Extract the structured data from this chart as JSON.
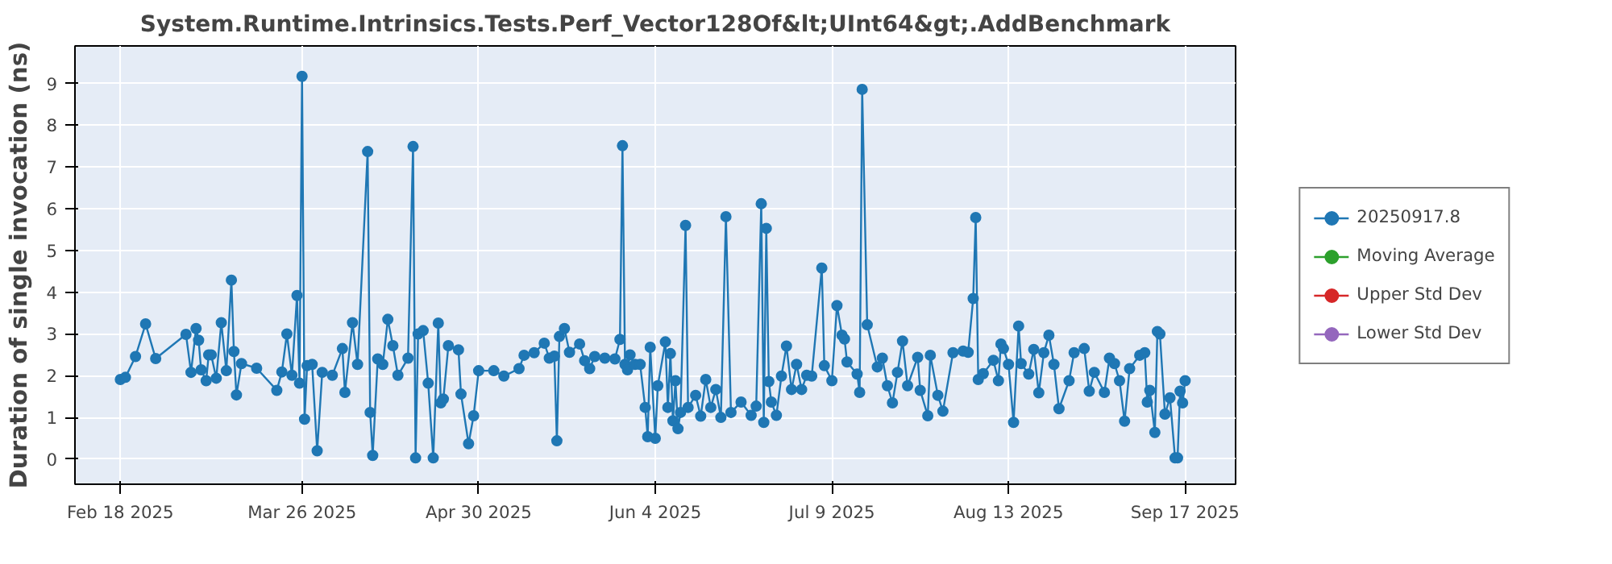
{
  "chart_data": {
    "type": "line",
    "title": "System.Runtime.Intrinsics.Tests.Perf_Vector128Of&lt;UInt64&gt;.AddBenchmark",
    "ylabel": "Duration of single invocation (ns)",
    "xlim": [
      "2025-02-09",
      "2025-09-27"
    ],
    "ylim": [
      -0.6,
      9.9
    ],
    "xticks": [
      {
        "value": "2025-02-18",
        "label": "Feb 18 2025"
      },
      {
        "value": "2025-03-26",
        "label": "Mar 26 2025"
      },
      {
        "value": "2025-04-30",
        "label": "Apr 30 2025"
      },
      {
        "value": "2025-06-04",
        "label": "Jun 4 2025"
      },
      {
        "value": "2025-07-09",
        "label": "Jul 9 2025"
      },
      {
        "value": "2025-08-13",
        "label": "Aug 13 2025"
      },
      {
        "value": "2025-09-17",
        "label": "Sep 17 2025"
      }
    ],
    "yticks": [
      0,
      1,
      2,
      3,
      4,
      5,
      6,
      7,
      8,
      9
    ],
    "grid": true,
    "legend": "right",
    "marker": "circle",
    "line_style": "solid",
    "series": [
      {
        "name": "20250917.8",
        "color": "#1f77b4",
        "x": [
          "2025-02-18",
          "2025-02-19",
          "2025-02-21",
          "2025-02-23",
          "2025-02-25",
          "2025-03-03",
          "2025-03-04",
          "2025-03-05",
          "2025-03-05T12:00",
          "2025-03-06",
          "2025-03-07",
          "2025-03-07T12:00",
          "2025-03-08",
          "2025-03-09",
          "2025-03-10",
          "2025-03-11",
          "2025-03-12",
          "2025-03-12T12:00",
          "2025-03-13",
          "2025-03-14",
          "2025-03-17",
          "2025-03-21",
          "2025-03-22",
          "2025-03-23",
          "2025-03-24",
          "2025-03-25",
          "2025-03-25T12:00",
          "2025-03-26",
          "2025-03-26T12:00",
          "2025-03-27",
          "2025-03-28",
          "2025-03-29",
          "2025-03-30",
          "2025-04-01",
          "2025-04-03",
          "2025-04-03T12:00",
          "2025-04-05",
          "2025-04-06",
          "2025-04-08",
          "2025-04-08T12:00",
          "2025-04-09",
          "2025-04-10",
          "2025-04-11",
          "2025-04-12",
          "2025-04-13",
          "2025-04-14",
          "2025-04-16",
          "2025-04-17",
          "2025-04-17T12:00",
          "2025-04-18",
          "2025-04-19",
          "2025-04-20",
          "2025-04-21",
          "2025-04-22",
          "2025-04-22T12:00",
          "2025-04-23",
          "2025-04-24",
          "2025-04-26",
          "2025-04-26T12:00",
          "2025-04-28",
          "2025-04-29",
          "2025-04-30",
          "2025-05-03",
          "2025-05-05",
          "2025-05-08",
          "2025-05-09",
          "2025-05-11",
          "2025-05-13",
          "2025-05-14",
          "2025-05-15",
          "2025-05-15T12:00",
          "2025-05-16",
          "2025-05-17",
          "2025-05-18",
          "2025-05-20",
          "2025-05-21",
          "2025-05-22",
          "2025-05-23",
          "2025-05-25",
          "2025-05-27",
          "2025-05-28",
          "2025-05-28T12:00",
          "2025-05-29",
          "2025-05-29T12:00",
          "2025-05-30",
          "2025-05-31",
          "2025-06-01",
          "2025-06-02",
          "2025-06-02T12:00",
          "2025-06-03",
          "2025-06-04",
          "2025-06-04T12:00",
          "2025-06-06",
          "2025-06-06T12:00",
          "2025-06-07",
          "2025-06-07T12:00",
          "2025-06-08",
          "2025-06-08T12:00",
          "2025-06-09",
          "2025-06-10",
          "2025-06-10T12:00",
          "2025-06-12",
          "2025-06-13",
          "2025-06-14",
          "2025-06-15",
          "2025-06-16",
          "2025-06-17",
          "2025-06-18",
          "2025-06-19",
          "2025-06-21",
          "2025-06-23",
          "2025-06-24",
          "2025-06-25",
          "2025-06-25T12:00",
          "2025-06-26",
          "2025-06-26T12:00",
          "2025-06-27",
          "2025-06-28",
          "2025-06-29",
          "2025-06-30",
          "2025-07-01",
          "2025-07-02",
          "2025-07-03",
          "2025-07-04",
          "2025-07-05",
          "2025-07-07",
          "2025-07-07T12:00",
          "2025-07-09",
          "2025-07-10",
          "2025-07-11",
          "2025-07-11T12:00",
          "2025-07-12",
          "2025-07-14",
          "2025-07-14T12:00",
          "2025-07-15",
          "2025-07-16",
          "2025-07-18",
          "2025-07-19",
          "2025-07-20",
          "2025-07-21",
          "2025-07-22",
          "2025-07-23",
          "2025-07-24",
          "2025-07-26",
          "2025-07-26T12:00",
          "2025-07-28",
          "2025-07-28T12:00",
          "2025-07-30",
          "2025-07-31",
          "2025-08-02",
          "2025-08-04",
          "2025-08-05",
          "2025-08-06",
          "2025-08-06T12:00",
          "2025-08-07",
          "2025-08-08",
          "2025-08-10",
          "2025-08-11",
          "2025-08-11T12:00",
          "2025-08-12",
          "2025-08-13",
          "2025-08-14",
          "2025-08-15",
          "2025-08-15T12:00",
          "2025-08-17",
          "2025-08-18",
          "2025-08-19",
          "2025-08-20",
          "2025-08-21",
          "2025-08-22",
          "2025-08-23",
          "2025-08-25",
          "2025-08-26",
          "2025-08-28",
          "2025-08-29",
          "2025-08-30",
          "2025-09-01",
          "2025-09-02",
          "2025-09-03",
          "2025-09-04",
          "2025-09-05",
          "2025-09-06",
          "2025-09-08",
          "2025-09-09",
          "2025-09-09T12:00",
          "2025-09-10",
          "2025-09-11",
          "2025-09-11T12:00",
          "2025-09-12",
          "2025-09-13",
          "2025-09-14",
          "2025-09-15",
          "2025-09-15T12:00",
          "2025-09-16",
          "2025-09-16T12:00",
          "2025-09-17"
        ],
        "values": [
          1.91,
          1.96,
          2.46,
          3.24,
          2.41,
          2.99,
          2.08,
          3.13,
          2.85,
          2.14,
          1.88,
          2.5,
          2.5,
          1.94,
          3.27,
          2.12,
          4.29,
          2.58,
          1.54,
          2.29,
          2.18,
          1.65,
          2.09,
          3.0,
          2.01,
          3.92,
          1.82,
          9.17,
          0.96,
          2.24,
          2.27,
          0.2,
          2.08,
          2.01,
          2.65,
          1.6,
          3.27,
          2.27,
          7.37,
          1.12,
          0.09,
          2.4,
          2.27,
          3.35,
          2.72,
          2.01,
          2.42,
          7.49,
          0.03,
          3.0,
          3.08,
          1.82,
          0.03,
          3.26,
          1.35,
          1.44,
          2.72,
          2.62,
          1.56,
          0.37,
          1.04,
          2.12,
          2.12,
          1.99,
          2.17,
          2.49,
          2.55,
          2.78,
          2.42,
          2.47,
          0.44,
          2.94,
          3.13,
          2.56,
          2.76,
          2.36,
          2.17,
          2.46,
          2.42,
          2.4,
          2.87,
          7.51,
          2.27,
          2.14,
          2.5,
          2.27,
          2.27,
          1.24,
          0.54,
          2.68,
          0.5,
          1.76,
          2.81,
          1.24,
          2.53,
          0.92,
          1.88,
          0.73,
          1.12,
          5.6,
          1.24,
          1.53,
          1.03,
          1.91,
          1.24,
          1.67,
          1.0,
          5.81,
          1.12,
          1.37,
          1.05,
          1.27,
          6.12,
          0.88,
          5.53,
          1.86,
          1.37,
          1.05,
          1.99,
          2.71,
          1.67,
          2.27,
          1.67,
          2.01,
          1.99,
          4.58,
          2.24,
          1.88,
          3.68,
          2.97,
          2.88,
          2.33,
          2.04,
          1.6,
          8.86,
          3.22,
          2.21,
          2.42,
          1.76,
          1.35,
          2.08,
          2.83,
          1.76,
          2.44,
          1.65,
          1.04,
          2.49,
          1.53,
          1.15,
          2.55,
          2.59,
          2.56,
          3.85,
          5.79,
          1.91,
          2.05,
          2.37,
          1.88,
          2.76,
          2.65,
          2.27,
          0.88,
          3.19,
          2.29,
          2.04,
          2.63,
          1.59,
          2.55,
          2.97,
          2.27,
          1.21,
          1.88,
          2.55,
          2.65,
          1.63,
          2.08,
          1.6,
          2.42,
          2.29,
          1.88,
          0.91,
          2.17,
          2.49,
          2.55,
          1.37,
          1.65,
          0.64,
          3.06,
          3.0,
          1.08,
          1.47,
          0.03,
          0.03,
          1.63,
          1.35,
          1.88
        ]
      },
      {
        "name": "Moving Average",
        "color": "#2ca02c"
      },
      {
        "name": "Upper Std Dev",
        "color": "#d62728"
      },
      {
        "name": "Lower Std Dev",
        "color": "#9467bd"
      }
    ]
  }
}
